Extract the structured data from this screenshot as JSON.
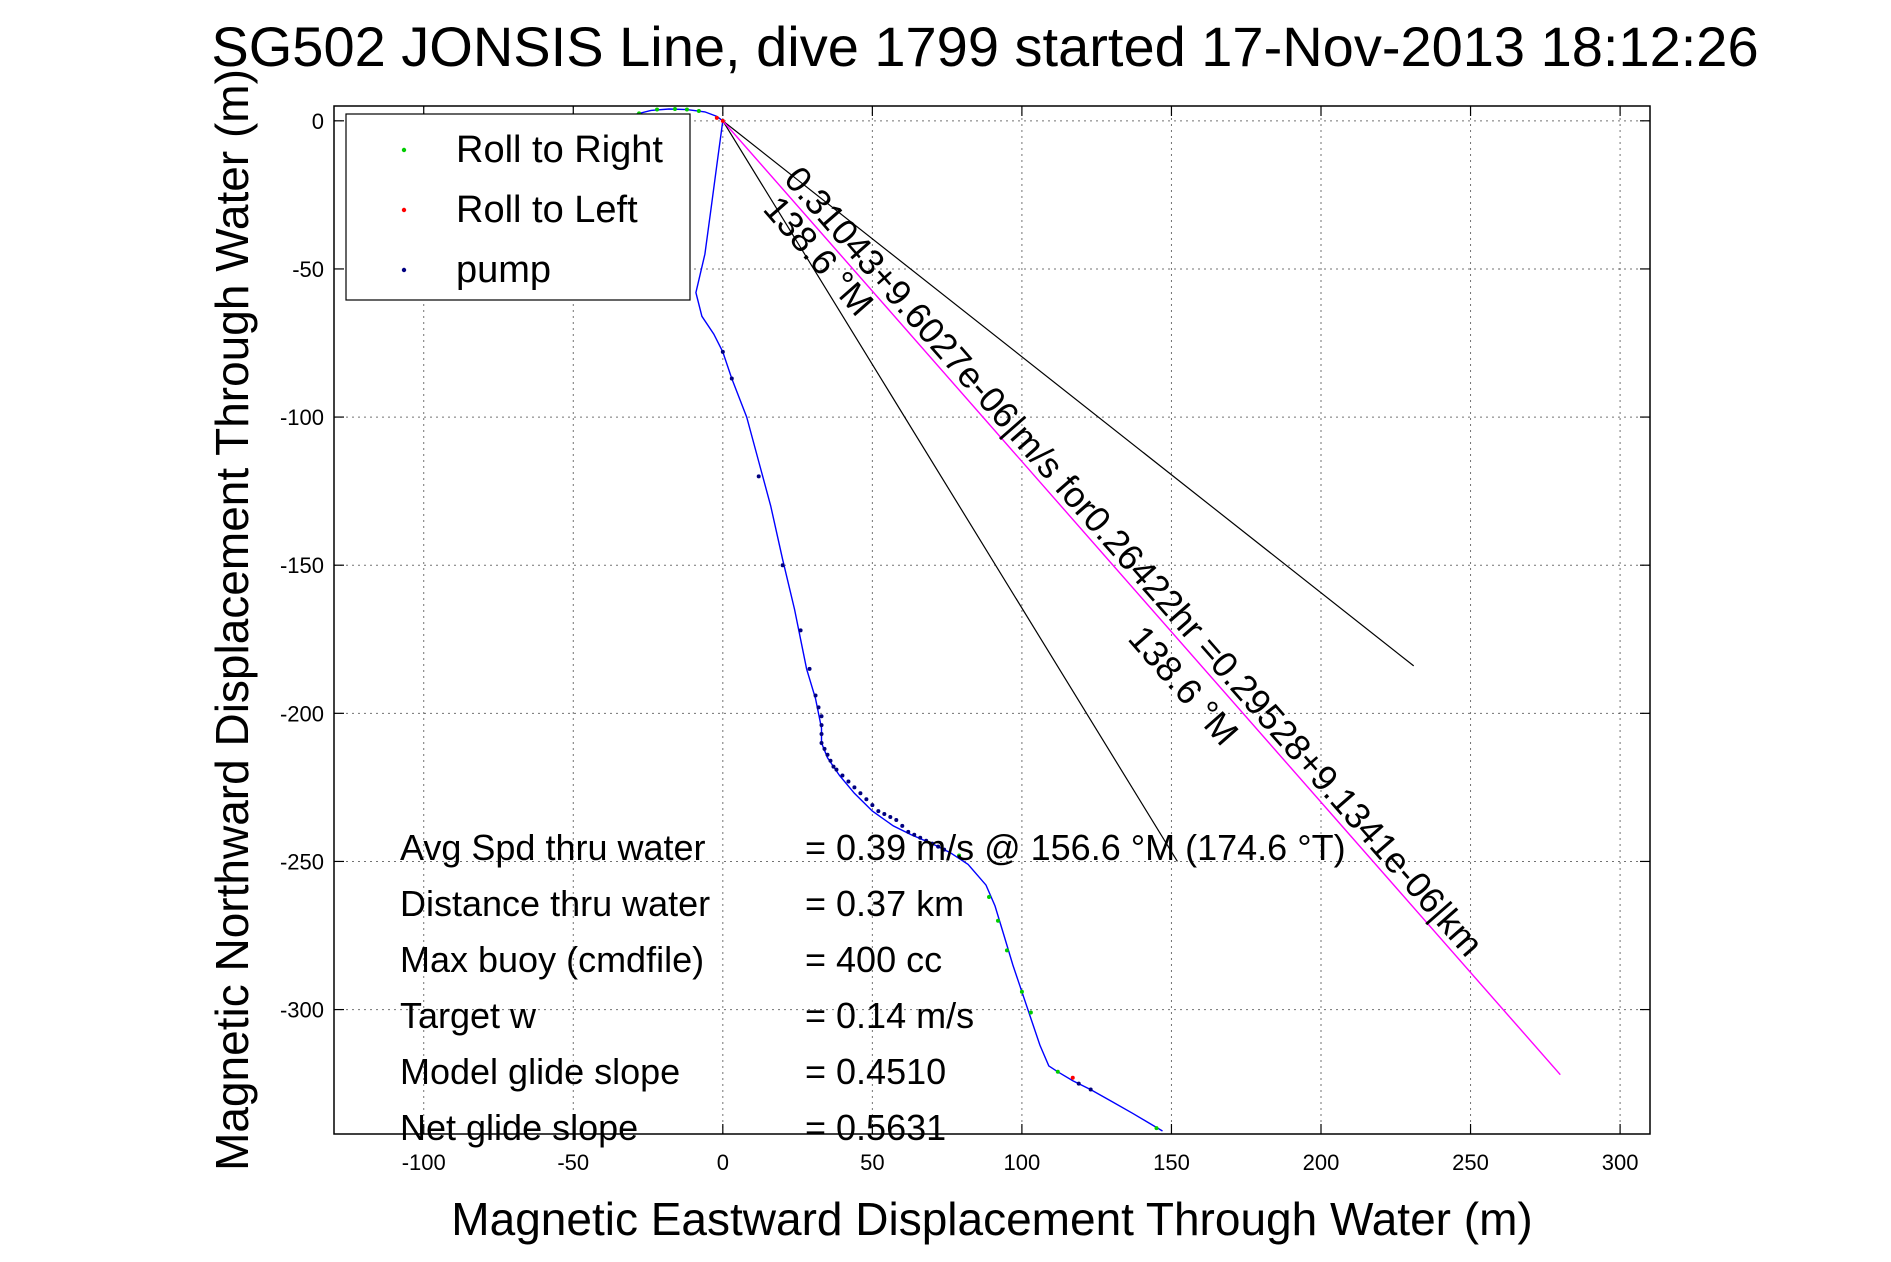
{
  "chart_data": {
    "type": "line",
    "title": "SG502 JONSIS Line, dive 1799 started 17-Nov-2013 18:12:26",
    "xlabel": "Magnetic Eastward Displacement Through Water (m)",
    "ylabel": "Magnetic Northward Displacement Through Water (m)",
    "xlim": [
      -130,
      310
    ],
    "ylim": [
      -342,
      5
    ],
    "xticks": [
      -100,
      -50,
      0,
      50,
      100,
      150,
      200,
      250,
      300
    ],
    "yticks": [
      0,
      -50,
      -100,
      -150,
      -200,
      -250,
      -300
    ],
    "xtick_labels": [
      "-100",
      "-50",
      "0",
      "50",
      "100",
      "150",
      "200",
      "250",
      "300"
    ],
    "ytick_labels": [
      "0",
      "-50",
      "-100",
      "-150",
      "-200",
      "-250",
      "-300"
    ],
    "grid": true,
    "legend_position": "top-left",
    "legend": [
      {
        "label": "Roll to Right",
        "color": "#00cc00"
      },
      {
        "label": "Roll to Left",
        "color": "#ff0000"
      },
      {
        "label": "pump",
        "color": "#000080"
      }
    ],
    "track_color": "#0000ff",
    "series": [
      {
        "name": "track",
        "points": [
          [
            -36,
            0
          ],
          [
            -30,
            2
          ],
          [
            -24,
            3.5
          ],
          [
            -18,
            4
          ],
          [
            -12,
            3.8
          ],
          [
            -6,
            3
          ],
          [
            -2,
            1.5
          ],
          [
            0,
            0
          ],
          [
            -2,
            -15
          ],
          [
            -4,
            -30
          ],
          [
            -6,
            -45
          ],
          [
            -9,
            -58
          ],
          [
            -7,
            -66
          ],
          [
            -3,
            -72
          ],
          [
            0,
            -78
          ],
          [
            3,
            -87
          ],
          [
            8,
            -100
          ],
          [
            12,
            -115
          ],
          [
            16,
            -130
          ],
          [
            20,
            -148
          ],
          [
            24,
            -165
          ],
          [
            26,
            -175
          ],
          [
            28,
            -185
          ],
          [
            31,
            -195
          ],
          [
            32,
            -200
          ],
          [
            33,
            -205
          ],
          [
            33,
            -210
          ],
          [
            35,
            -215
          ],
          [
            39,
            -221
          ],
          [
            44,
            -227
          ],
          [
            50,
            -233
          ],
          [
            57,
            -238
          ],
          [
            63,
            -241
          ],
          [
            70,
            -244
          ],
          [
            76,
            -247
          ],
          [
            82,
            -251
          ],
          [
            88,
            -258
          ],
          [
            91,
            -265
          ],
          [
            94,
            -275
          ],
          [
            97,
            -285
          ],
          [
            100,
            -294
          ],
          [
            103,
            -303
          ],
          [
            106,
            -312
          ],
          [
            109,
            -319
          ],
          [
            112,
            -321
          ],
          [
            117,
            -324
          ],
          [
            123,
            -327
          ],
          [
            130,
            -331
          ],
          [
            137,
            -335
          ],
          [
            142,
            -338
          ],
          [
            147,
            -341
          ]
        ]
      },
      {
        "name": "Roll to Right",
        "color": "#00cc00",
        "points": [
          [
            -28,
            2.5
          ],
          [
            -22,
            3.8
          ],
          [
            -16,
            4
          ],
          [
            -12,
            3.8
          ],
          [
            -8,
            3.3
          ],
          [
            79,
            -248
          ],
          [
            89,
            -262
          ],
          [
            92,
            -270
          ],
          [
            95,
            -280
          ],
          [
            100,
            -294
          ],
          [
            103,
            -301
          ],
          [
            112,
            -321
          ],
          [
            145,
            -340
          ]
        ]
      },
      {
        "name": "Roll to Left",
        "color": "#ff0000",
        "points": [
          [
            -2,
            1
          ],
          [
            0,
            0
          ],
          [
            117,
            -323
          ]
        ]
      },
      {
        "name": "pump",
        "color": "#000080",
        "points": [
          [
            0,
            -78
          ],
          [
            3,
            -87
          ],
          [
            12,
            -120
          ],
          [
            20,
            -150
          ],
          [
            26,
            -172
          ],
          [
            29,
            -185
          ],
          [
            31,
            -194
          ],
          [
            32,
            -198
          ],
          [
            33,
            -201
          ],
          [
            33,
            -204
          ],
          [
            33,
            -207
          ],
          [
            33,
            -210
          ],
          [
            34,
            -212
          ],
          [
            35,
            -214
          ],
          [
            36,
            -216
          ],
          [
            37,
            -218
          ],
          [
            38,
            -219
          ],
          [
            40,
            -221
          ],
          [
            42,
            -223
          ],
          [
            44,
            -225
          ],
          [
            46,
            -227
          ],
          [
            48,
            -229
          ],
          [
            50,
            -231
          ],
          [
            52,
            -233
          ],
          [
            54,
            -234
          ],
          [
            56,
            -235
          ],
          [
            58,
            -236
          ],
          [
            60,
            -238
          ],
          [
            62,
            -240
          ],
          [
            64,
            -241
          ],
          [
            66,
            -242
          ],
          [
            68,
            -243
          ],
          [
            70,
            -244
          ],
          [
            72,
            -245
          ],
          [
            74,
            -246
          ],
          [
            119,
            -325
          ],
          [
            123,
            -327
          ]
        ]
      },
      {
        "name": "current vector",
        "color": "#ff00ff",
        "points": [
          [
            0,
            0
          ],
          [
            280,
            -322
          ]
        ]
      },
      {
        "name": "heading line A",
        "color": "#000000",
        "points": [
          [
            0,
            0
          ],
          [
            231,
            -184
          ]
        ]
      },
      {
        "name": "heading line B",
        "color": "#000000",
        "points": [
          [
            0,
            0
          ],
          [
            152,
            -250
          ]
        ]
      }
    ],
    "annotations": [
      {
        "text": "0.31043+9.6027e-06|m/s for0.26422hr =0.29528+9.1341e-06|km",
        "x": 20,
        "y": -20,
        "angle": 48.7
      },
      {
        "text": "138.6 °M",
        "x": 13,
        "y": -30,
        "angle": 48.7
      },
      {
        "text": "138.6 °M",
        "x": 135,
        "y": -175,
        "angle": 48.7
      }
    ],
    "stats": [
      {
        "label": "Avg Spd thru water",
        "value": "=  0.39 m/s @ 156.6 °M (174.6 °T)"
      },
      {
        "label": "Distance thru water",
        "value": "=  0.37 km"
      },
      {
        "label": "Max buoy (cmdfile)",
        "value": "= 400 cc"
      },
      {
        "label": "Target w",
        "value": "= 0.14 m/s"
      },
      {
        "label": "Model glide slope",
        "value": "= 0.4510"
      },
      {
        "label": "Net glide slope",
        "value": "= 0.5631"
      }
    ]
  }
}
